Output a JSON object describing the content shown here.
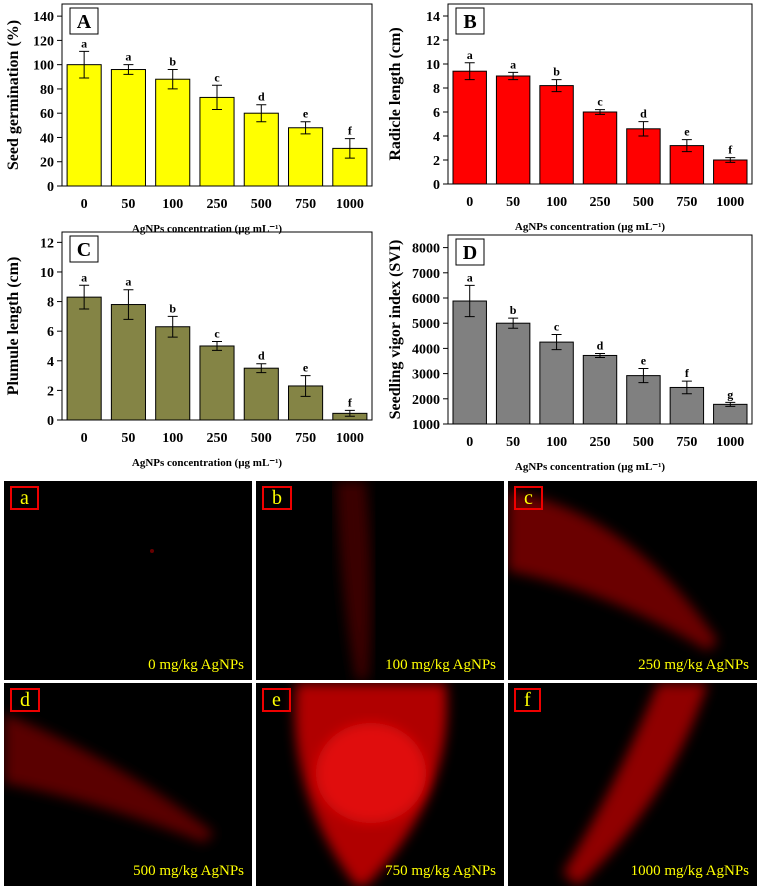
{
  "chart_data": [
    {
      "type": "bar",
      "panel": "A",
      "y_label": "Seed germination (%)",
      "x_label": "AgNPs concentration (µg mL⁻¹)",
      "categories": [
        "0",
        "50",
        "100",
        "250",
        "500",
        "750",
        "1000"
      ],
      "values": [
        100,
        96,
        88,
        73,
        60,
        48,
        31
      ],
      "errors": [
        11,
        4,
        8,
        10,
        7,
        5,
        8
      ],
      "letters": [
        "a",
        "a",
        "b",
        "c",
        "d",
        "e",
        "f"
      ],
      "color": "#ffff00",
      "ylim": [
        0,
        150
      ],
      "yticks": [
        0,
        20,
        40,
        60,
        80,
        100,
        120,
        140
      ]
    },
    {
      "type": "bar",
      "panel": "B",
      "y_label": "Radicle length (cm)",
      "x_label": "AgNPs concentration (µg mL⁻¹)",
      "categories": [
        "0",
        "50",
        "100",
        "250",
        "500",
        "750",
        "1000"
      ],
      "values": [
        9.4,
        9.0,
        8.2,
        6.0,
        4.6,
        3.2,
        2.0
      ],
      "errors": [
        0.7,
        0.3,
        0.5,
        0.2,
        0.6,
        0.5,
        0.2
      ],
      "letters": [
        "a",
        "a",
        "b",
        "c",
        "d",
        "e",
        "f"
      ],
      "color": "#ff0000",
      "ylim": [
        0,
        15
      ],
      "yticks": [
        0,
        2,
        4,
        6,
        8,
        10,
        12,
        14
      ]
    },
    {
      "type": "bar",
      "panel": "C",
      "y_label": "Plumule length (cm)",
      "x_label": "AgNPs concentration (µg mL⁻¹)",
      "categories": [
        "0",
        "50",
        "100",
        "250",
        "500",
        "750",
        "1000"
      ],
      "values": [
        8.3,
        7.8,
        6.3,
        5.0,
        3.5,
        2.3,
        0.45
      ],
      "errors": [
        0.8,
        1.0,
        0.7,
        0.3,
        0.3,
        0.7,
        0.2
      ],
      "letters": [
        "a",
        "a",
        "b",
        "c",
        "d",
        "e",
        "f"
      ],
      "color": "#848445",
      "ylim": [
        0,
        12.7
      ],
      "yticks": [
        0,
        2,
        4,
        6,
        8,
        10,
        12
      ]
    },
    {
      "type": "bar",
      "panel": "D",
      "y_label": "Seedling vigor index (SVI)",
      "x_label": "AgNPs concentration (µg mL⁻¹)",
      "categories": [
        "0",
        "50",
        "100",
        "250",
        "500",
        "750",
        "1000"
      ],
      "values": [
        5880,
        5000,
        4250,
        3720,
        2920,
        2450,
        1780
      ],
      "errors": [
        620,
        200,
        300,
        80,
        280,
        250,
        80
      ],
      "letters": [
        "a",
        "b",
        "c",
        "d",
        "e",
        "f",
        "g"
      ],
      "color": "#808080",
      "ylim": [
        1000,
        8500
      ],
      "yticks": [
        1000,
        2000,
        3000,
        4000,
        5000,
        6000,
        7000,
        8000
      ]
    }
  ],
  "images": [
    {
      "label": "a",
      "caption": "0 mg/kg AgNPs"
    },
    {
      "label": "b",
      "caption": "100 mg/kg AgNPs"
    },
    {
      "label": "c",
      "caption": "250 mg/kg AgNPs"
    },
    {
      "label": "d",
      "caption": "500 mg/kg AgNPs"
    },
    {
      "label": "e",
      "caption": "750 mg/kg AgNPs"
    },
    {
      "label": "f",
      "caption": "1000 mg/kg AgNPs"
    }
  ]
}
